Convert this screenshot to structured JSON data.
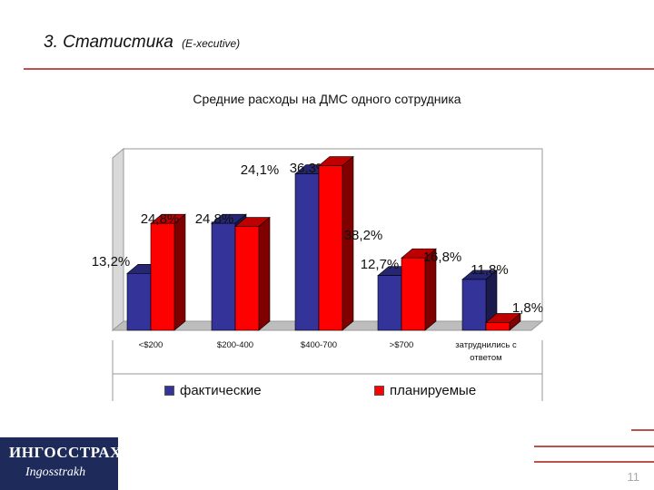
{
  "slide": {
    "title": "3. Статистика",
    "title_suffix": "(E-xecutive)",
    "page_number": "11",
    "accent_color": "#c0504d"
  },
  "logo": {
    "text_line1": "ИНГОССТРАХ",
    "text_line2": "Ingosstrakh"
  },
  "chart_data": {
    "type": "bar",
    "title": "Средние расходы на ДМС одного сотрудника",
    "categories": [
      "<$200",
      "$200-400",
      "$400-700",
      ">$700",
      "затруднились с ответом"
    ],
    "series": [
      {
        "name": "фактические",
        "color": "#333399",
        "values": [
          13.2,
          24.8,
          36.3,
          12.7,
          11.8
        ],
        "labels": [
          "13,2%",
          "24,8%",
          "36,3%",
          "12,7%",
          "11,8%"
        ]
      },
      {
        "name": "планируемые",
        "color": "#ff0000",
        "values": [
          24.8,
          24.1,
          38.2,
          16.8,
          1.8
        ],
        "labels": [
          "24,8%",
          "24,1%",
          "38,2%",
          "16,8%",
          "1,8%"
        ]
      }
    ],
    "ylim": [
      0,
      40
    ],
    "grid": false,
    "legend_position": "bottom"
  }
}
